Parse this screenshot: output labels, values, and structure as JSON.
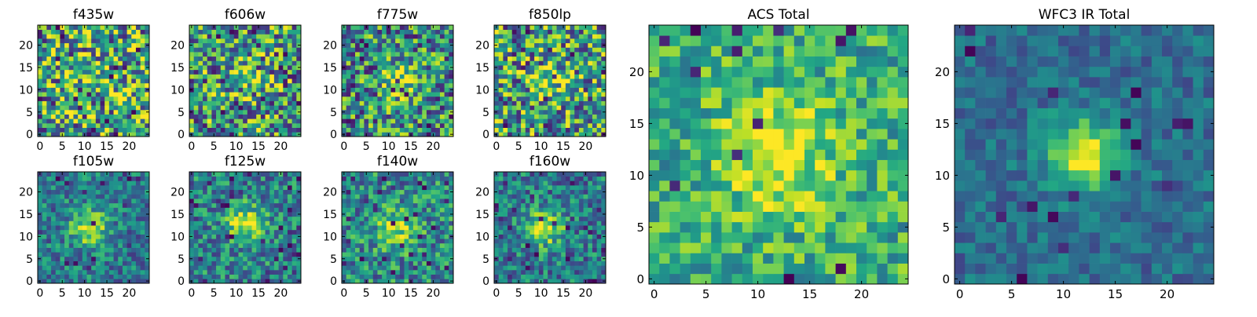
{
  "chart_data": [
    {
      "type": "heatmap",
      "title": "f435w",
      "xlim": [
        0,
        24
      ],
      "ylim": [
        0,
        24
      ],
      "x_ticks": [
        0,
        5,
        10,
        15,
        20
      ],
      "y_ticks": [
        0,
        5,
        10,
        15,
        20
      ],
      "grid": false,
      "colormap": "viridis"
    },
    {
      "type": "heatmap",
      "title": "f606w",
      "xlim": [
        0,
        24
      ],
      "ylim": [
        0,
        24
      ],
      "x_ticks": [
        0,
        5,
        10,
        15,
        20
      ],
      "y_ticks": [
        0,
        5,
        10,
        15,
        20
      ],
      "grid": false,
      "colormap": "viridis"
    },
    {
      "type": "heatmap",
      "title": "f775w",
      "xlim": [
        0,
        24
      ],
      "ylim": [
        0,
        24
      ],
      "x_ticks": [
        0,
        5,
        10,
        15,
        20
      ],
      "y_ticks": [
        0,
        5,
        10,
        15,
        20
      ],
      "grid": false,
      "colormap": "viridis"
    },
    {
      "type": "heatmap",
      "title": "f850lp",
      "xlim": [
        0,
        24
      ],
      "ylim": [
        0,
        24
      ],
      "x_ticks": [
        0,
        5,
        10,
        15,
        20
      ],
      "y_ticks": [
        0,
        5,
        10,
        15,
        20
      ],
      "grid": false,
      "colormap": "viridis"
    },
    {
      "type": "heatmap",
      "title": "f105w",
      "xlim": [
        0,
        24
      ],
      "ylim": [
        0,
        24
      ],
      "x_ticks": [
        0,
        5,
        10,
        15,
        20
      ],
      "y_ticks": [
        0,
        5,
        10,
        15,
        20
      ],
      "grid": false,
      "colormap": "viridis"
    },
    {
      "type": "heatmap",
      "title": "f125w",
      "xlim": [
        0,
        24
      ],
      "ylim": [
        0,
        24
      ],
      "x_ticks": [
        0,
        5,
        10,
        15,
        20
      ],
      "y_ticks": [
        0,
        5,
        10,
        15,
        20
      ],
      "grid": false,
      "colormap": "viridis"
    },
    {
      "type": "heatmap",
      "title": "f140w",
      "xlim": [
        0,
        24
      ],
      "ylim": [
        0,
        24
      ],
      "x_ticks": [
        0,
        5,
        10,
        15,
        20
      ],
      "y_ticks": [
        0,
        5,
        10,
        15,
        20
      ],
      "grid": false,
      "colormap": "viridis"
    },
    {
      "type": "heatmap",
      "title": "f160w",
      "xlim": [
        0,
        24
      ],
      "ylim": [
        0,
        24
      ],
      "x_ticks": [
        0,
        5,
        10,
        15,
        20
      ],
      "y_ticks": [
        0,
        5,
        10,
        15,
        20
      ],
      "grid": false,
      "colormap": "viridis"
    },
    {
      "type": "heatmap",
      "title": "ACS Total",
      "xlim": [
        0,
        24
      ],
      "ylim": [
        0,
        24
      ],
      "x_ticks": [
        0,
        5,
        10,
        15,
        20
      ],
      "y_ticks": [
        0,
        5,
        10,
        15,
        20
      ],
      "grid": false,
      "colormap": "viridis"
    },
    {
      "type": "heatmap",
      "title": "WFC3 IR Total",
      "xlim": [
        0,
        24
      ],
      "ylim": [
        0,
        24
      ],
      "x_ticks": [
        0,
        5,
        10,
        15,
        20
      ],
      "y_ticks": [
        0,
        5,
        10,
        15,
        20
      ],
      "grid": false,
      "colormap": "viridis"
    }
  ]
}
